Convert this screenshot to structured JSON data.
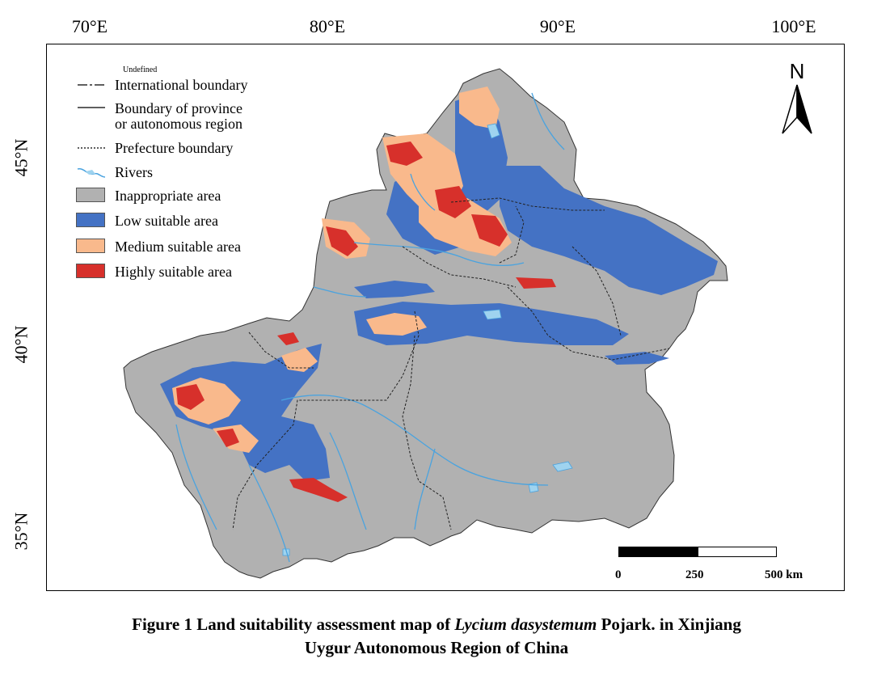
{
  "map": {
    "lon_ticks": [
      "70°E",
      "80°E",
      "90°E",
      "100°E"
    ],
    "lat_ticks": [
      "45°N",
      "40°N",
      "35°N"
    ],
    "north_label": "N",
    "legend": {
      "undefined_note": "Undefined",
      "items": [
        {
          "label": "International boundary",
          "symbol": "dash-dot-line"
        },
        {
          "label_line1": "Boundary of province",
          "label_line2": "or autonomous region",
          "symbol": "solid-line"
        },
        {
          "label": "Prefecture boundary",
          "symbol": "dotted-line"
        },
        {
          "label": "Rivers",
          "symbol": "river-icon"
        },
        {
          "label": "Inappropriate area",
          "color": "#b1b1b1"
        },
        {
          "label": "Low suitable area",
          "color": "#4472c4"
        },
        {
          "label": "Medium suitable area",
          "color": "#f9b98c"
        },
        {
          "label": "Highly suitable area",
          "color": "#d7302b"
        }
      ]
    },
    "scale": {
      "labels": [
        "0",
        "250",
        "500 km"
      ]
    },
    "colors": {
      "river": "#4aa3df",
      "lake": "#9fd3ef"
    }
  },
  "caption": {
    "line1_prefix": "Figure 1 Land suitability assessment map of ",
    "line1_italic": "Lycium dasystemum",
    "line1_suffix": " Pojark. in Xinjiang",
    "line2": "Uygur Autonomous Region of China"
  }
}
